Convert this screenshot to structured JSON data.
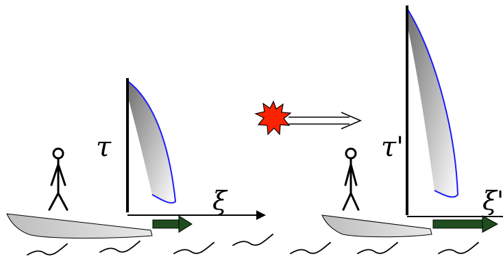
{
  "labels": {
    "left_time_axis": "τ",
    "left_space_axis": "ξ",
    "right_time_axis": "τ'",
    "right_space_axis": "ξ'"
  },
  "colors": {
    "background": "#ffffff",
    "sail_outline": "#1a1aff",
    "sail_gradient_dark": "#8a8a8a",
    "hull_fill": "#c8c8c8",
    "motion_arrow": "#1f4d1f",
    "flash_fill": "#ff2200",
    "ink": "#000000"
  },
  "icons": {
    "event": "explosion-star-icon",
    "transform": "double-arrow-icon",
    "person": "stick-figure-icon",
    "water": "wave-icon"
  }
}
